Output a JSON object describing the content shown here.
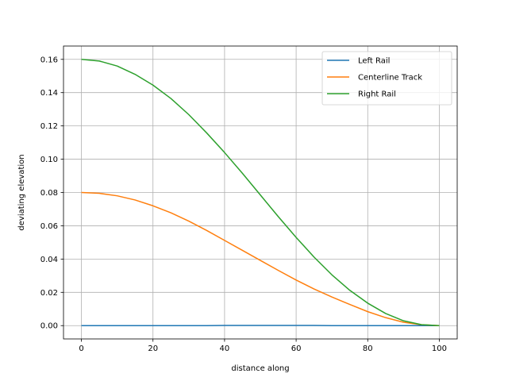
{
  "chart_data": {
    "type": "line",
    "xlabel": "distance along",
    "ylabel": "deviating elevation",
    "xlim": [
      -5,
      105
    ],
    "ylim": [
      -0.008,
      0.168
    ],
    "xticks": [
      0,
      20,
      40,
      60,
      80,
      100
    ],
    "yticks": [
      0.0,
      0.02,
      0.04,
      0.06,
      0.08,
      0.1,
      0.12,
      0.14,
      0.16
    ],
    "xtick_labels": [
      "0",
      "20",
      "40",
      "60",
      "80",
      "100"
    ],
    "ytick_labels": [
      "0.00",
      "0.02",
      "0.04",
      "0.06",
      "0.08",
      "0.10",
      "0.12",
      "0.14",
      "0.16"
    ],
    "grid": true,
    "legend_position": "top-right",
    "x": [
      0,
      5,
      10,
      15,
      20,
      25,
      30,
      35,
      40,
      45,
      50,
      55,
      60,
      65,
      70,
      75,
      80,
      85,
      90,
      95,
      100
    ],
    "series": [
      {
        "name": "Left Rail",
        "color": "#1f77b4",
        "values": [
          0.0,
          0.0,
          0.0,
          0.0,
          0.0,
          0.0,
          0.0,
          0.0,
          0.0001,
          0.0001,
          0.0001,
          0.0001,
          0.0001,
          0.0001,
          0.0,
          0.0,
          0.0,
          0.0,
          0.0,
          0.0,
          0.0
        ]
      },
      {
        "name": "Centerline Track",
        "color": "#ff7f0e",
        "values": [
          0.08,
          0.0795,
          0.078,
          0.0755,
          0.072,
          0.0678,
          0.0628,
          0.0572,
          0.0512,
          0.0452,
          0.0392,
          0.0332,
          0.0274,
          0.022,
          0.0172,
          0.0127,
          0.0084,
          0.0048,
          0.002,
          0.0005,
          0.0
        ]
      },
      {
        "name": "Right Rail",
        "color": "#2ca02c",
        "values": [
          0.16,
          0.159,
          0.156,
          0.151,
          0.1445,
          0.1365,
          0.1268,
          0.1158,
          0.104,
          0.0915,
          0.0785,
          0.0655,
          0.053,
          0.0412,
          0.0305,
          0.0212,
          0.0135,
          0.0073,
          0.0029,
          0.0006,
          0.0
        ]
      }
    ]
  }
}
